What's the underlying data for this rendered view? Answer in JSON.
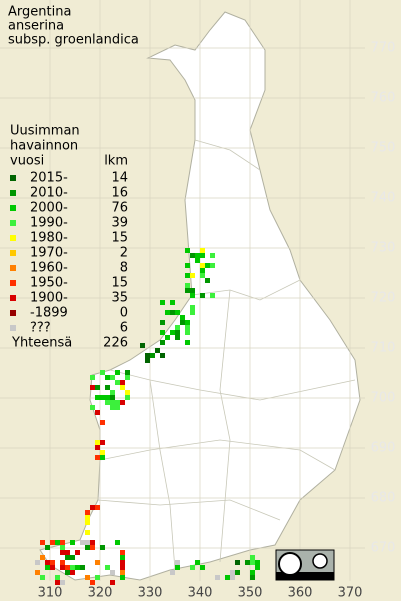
{
  "map": {
    "title": [
      "Argentina",
      "anserina",
      "subsp. groenlandica"
    ],
    "xticks": [
      310,
      320,
      330,
      340,
      350,
      360,
      370
    ],
    "yticks": [
      770,
      760,
      750,
      740,
      730,
      720,
      710,
      700,
      690,
      680,
      670
    ],
    "legend": {
      "title": [
        "Uusimman",
        "havainnon"
      ],
      "label_header": "vuosi",
      "count_header": "lkm",
      "entries": [
        {
          "label": "2015-",
          "count": 14,
          "color": "#006400"
        },
        {
          "label": "2010-",
          "count": 16,
          "color": "#009600"
        },
        {
          "label": "2000-",
          "count": 76,
          "color": "#00c800"
        },
        {
          "label": "1990-",
          "count": 39,
          "color": "#3cf03c"
        },
        {
          "label": "1980-",
          "count": 15,
          "color": "#ffff00"
        },
        {
          "label": "1970-",
          "count": 2,
          "color": "#ffc800"
        },
        {
          "label": "1960-",
          "count": 8,
          "color": "#ff8000"
        },
        {
          "label": "1950-",
          "count": 15,
          "color": "#ff3000"
        },
        {
          "label": "1900-",
          "count": 35,
          "color": "#d80000"
        },
        {
          "label": "-1899",
          "count": 0,
          "color": "#960000"
        },
        {
          "label": "???",
          "count": 6,
          "color": "#c8c8c8"
        }
      ],
      "total_label": "Yhteensä",
      "total": 226
    }
  }
}
